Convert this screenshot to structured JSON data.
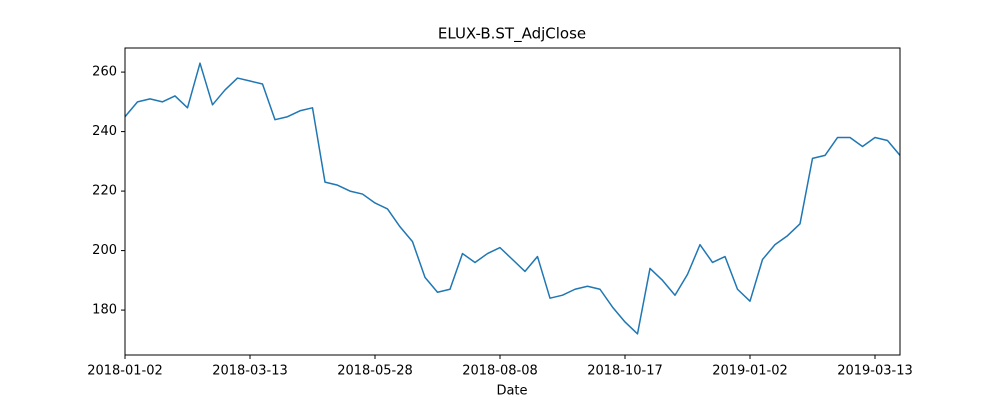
{
  "chart_data": {
    "type": "line",
    "title": "ELUX-B.ST_AdjClose",
    "xlabel": "Date",
    "categories": [
      "2018-01-02",
      null,
      null,
      null,
      null,
      null,
      null,
      null,
      null,
      null,
      "2018-03-13",
      null,
      null,
      null,
      null,
      null,
      null,
      null,
      null,
      null,
      "2018-05-28",
      null,
      null,
      null,
      null,
      null,
      null,
      null,
      null,
      null,
      "2018-08-08",
      null,
      null,
      null,
      null,
      null,
      null,
      null,
      null,
      null,
      "2018-10-17",
      null,
      null,
      null,
      null,
      null,
      null,
      null,
      null,
      null,
      "2019-01-02",
      null,
      null,
      null,
      null,
      null,
      null,
      null,
      null,
      null,
      "2019-03-13",
      null,
      null
    ],
    "series": [
      {
        "name": "AdjClose",
        "color": "#1f77b4",
        "values": [
          245,
          250,
          251,
          250,
          252,
          248,
          263,
          249,
          254,
          258,
          257,
          256,
          244,
          245,
          247,
          248,
          223,
          222,
          220,
          219,
          216,
          214,
          208,
          203,
          191,
          186,
          187,
          199,
          196,
          199,
          201,
          197,
          193,
          198,
          184,
          185,
          187,
          188,
          187,
          181,
          176,
          172,
          194,
          190,
          185,
          192,
          202,
          196,
          198,
          187,
          183,
          197,
          202,
          205,
          209,
          231,
          232,
          238,
          238,
          235,
          238,
          237,
          232
        ]
      }
    ],
    "ylim": [
      164.9,
      268.1
    ],
    "yticks": [
      180,
      200,
      220,
      240,
      260
    ]
  }
}
